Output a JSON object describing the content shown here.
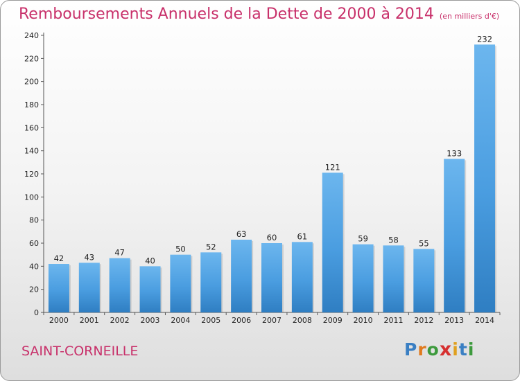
{
  "header": {
    "title": "Remboursements Annuels de la Dette de 2000 à 2014",
    "subtitle": "(en milliers d'€)"
  },
  "commune": "SAINT-CORNEILLE",
  "logo": {
    "text": "Proxiti"
  },
  "colors": {
    "accent": "#c8306a",
    "bar": "#3f93d7",
    "bar_light": "#6cb6ee"
  },
  "chart_data": {
    "type": "bar",
    "title": "Remboursements Annuels de la Dette de 2000 à 2014",
    "subtitle": "(en milliers d'€)",
    "xlabel": "",
    "ylabel": "",
    "categories": [
      "2000",
      "2001",
      "2002",
      "2003",
      "2004",
      "2005",
      "2006",
      "2007",
      "2008",
      "2009",
      "2010",
      "2011",
      "2012",
      "2013",
      "2014"
    ],
    "values": [
      42,
      43,
      47,
      40,
      50,
      52,
      63,
      60,
      61,
      121,
      59,
      58,
      55,
      133,
      232
    ],
    "ylim": [
      0,
      240
    ],
    "yticks": [
      0,
      20,
      40,
      60,
      80,
      100,
      120,
      140,
      160,
      180,
      200,
      220,
      240
    ],
    "grid": false,
    "data_labels": true
  }
}
